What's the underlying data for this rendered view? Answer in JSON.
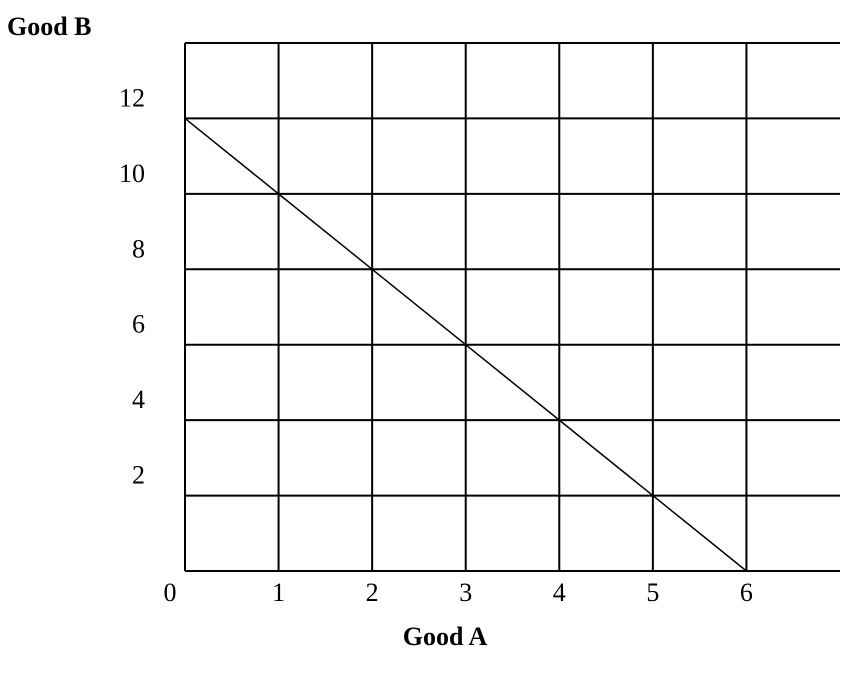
{
  "chart_data": {
    "type": "line",
    "title": "",
    "xlabel": "Good A",
    "ylabel": "Good B",
    "origin_label": "0",
    "x_ticks": [
      "1",
      "2",
      "3",
      "4",
      "5",
      "6"
    ],
    "y_ticks": [
      "2",
      "4",
      "6",
      "8",
      "10",
      "12"
    ],
    "xlim": [
      0,
      7
    ],
    "ylim": [
      0,
      14
    ],
    "grid": true,
    "series": [
      {
        "x": [
          0,
          1,
          2,
          3,
          4,
          5,
          6
        ],
        "y": [
          12,
          10,
          8,
          6,
          4,
          2,
          0
        ]
      }
    ]
  }
}
